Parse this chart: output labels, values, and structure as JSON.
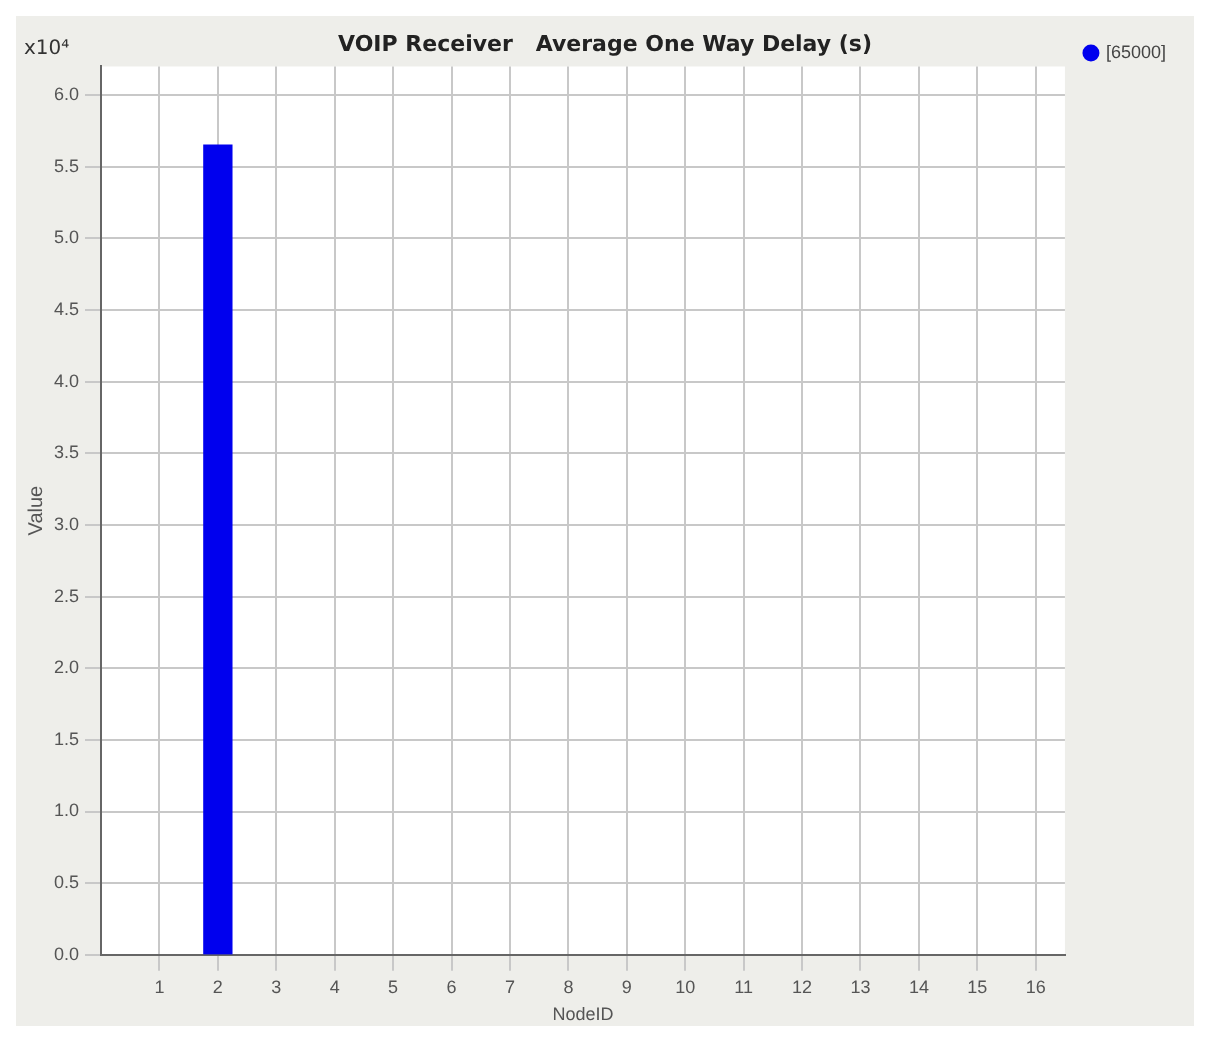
{
  "chart_data": {
    "type": "bar",
    "title": "VOIP Receiver   Average One Way Delay (s)",
    "xlabel": "NodeID",
    "ylabel": "Value",
    "annotations": [
      "x10⁴"
    ],
    "x": [
      2
    ],
    "series": [
      {
        "name": "[65000]",
        "color": "#0000ee",
        "values": [
          5.65
        ]
      }
    ],
    "xlim": [
      0,
      16.5
    ],
    "xticks": [
      1,
      2,
      3,
      4,
      5,
      6,
      7,
      8,
      9,
      10,
      11,
      12,
      13,
      14,
      15,
      16
    ],
    "ylim": [
      0,
      6.2
    ],
    "yticks": [
      {
        "value": 0,
        "label": "0.0"
      },
      {
        "value": 0.5,
        "label": "0.5"
      },
      {
        "value": 1,
        "label": "1.0"
      },
      {
        "value": 1.5,
        "label": "1.5"
      },
      {
        "value": 2,
        "label": "2.0"
      },
      {
        "value": 2.5,
        "label": "2.5"
      },
      {
        "value": 3,
        "label": "3.0"
      },
      {
        "value": 3.5,
        "label": "3.5"
      },
      {
        "value": 4,
        "label": "4.0"
      },
      {
        "value": 4.5,
        "label": "4.5"
      },
      {
        "value": 5,
        "label": "5.0"
      },
      {
        "value": 5.5,
        "label": "5.5"
      },
      {
        "value": 6,
        "label": "6.0"
      }
    ],
    "grid": true,
    "legend": "top right"
  }
}
